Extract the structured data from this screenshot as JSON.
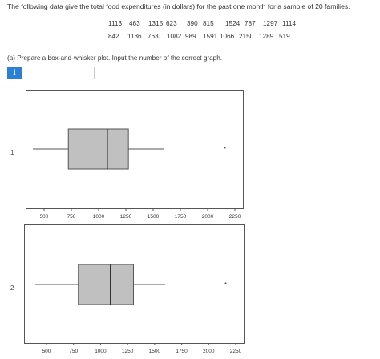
{
  "question": {
    "text": "The following data give the total food expenditures (in dollars) for the past one month for a sample of 20 families.",
    "data_rows": [
      [
        "1113",
        "463",
        "1315",
        "623",
        "390",
        "815",
        "1524",
        "787",
        "1297",
        "1114"
      ],
      [
        "842",
        "1136",
        "763",
        "1082",
        "989",
        "1591",
        "1066",
        "2150",
        "1289",
        "519"
      ]
    ]
  },
  "part_a": {
    "label": "(a) Prepare a box-and-whisker plot. Input the number of the correct graph.",
    "info_icon_glyph": "i",
    "answer_value": "",
    "answer_placeholder": ""
  },
  "options": [
    {
      "number": "1"
    },
    {
      "number": "2"
    }
  ],
  "chart_data": [
    {
      "type": "boxplot",
      "xlim": [
        300,
        2300
      ],
      "ticks": [
        500,
        750,
        1000,
        1250,
        1500,
        1750,
        2000,
        2250
      ],
      "whisker_low": 390,
      "q1": 715,
      "median": 1074,
      "q3": 1266,
      "whisker_high": 1591,
      "outliers": [
        2150
      ]
    },
    {
      "type": "boxplot",
      "xlim": [
        300,
        2300
      ],
      "ticks": [
        500,
        750,
        1000,
        1250,
        1500,
        1750,
        2000,
        2250
      ],
      "whisker_low": 390,
      "q1": 787,
      "median": 1082,
      "q3": 1297,
      "whisker_high": 1591,
      "outliers": [
        2150
      ]
    }
  ],
  "colors": {
    "info_button": "#2d7fd6",
    "box_fill": "#c0c0c0",
    "stroke": "#555555"
  }
}
